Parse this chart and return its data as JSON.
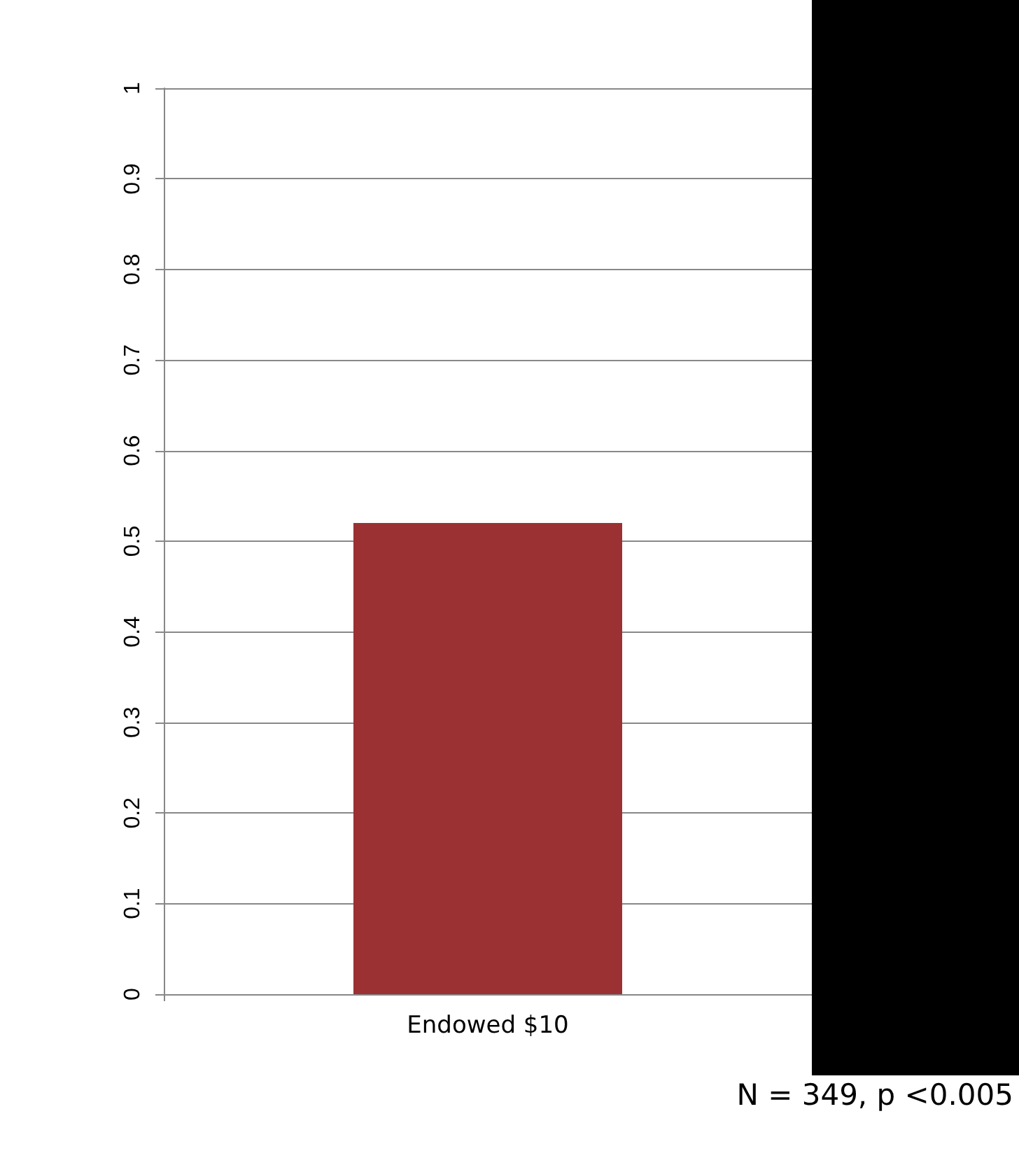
{
  "chart_data": {
    "type": "bar",
    "categories": [
      "Endowed $10"
    ],
    "values": [
      0.52
    ],
    "color": "#9b3133",
    "ylim": [
      0,
      1
    ],
    "yticks": [
      0,
      0.1,
      0.2,
      0.3,
      0.4,
      0.5,
      0.6,
      0.7,
      0.8,
      0.9,
      1
    ],
    "grid": "y",
    "annotations": [
      "N = 349, p <0.005"
    ]
  }
}
